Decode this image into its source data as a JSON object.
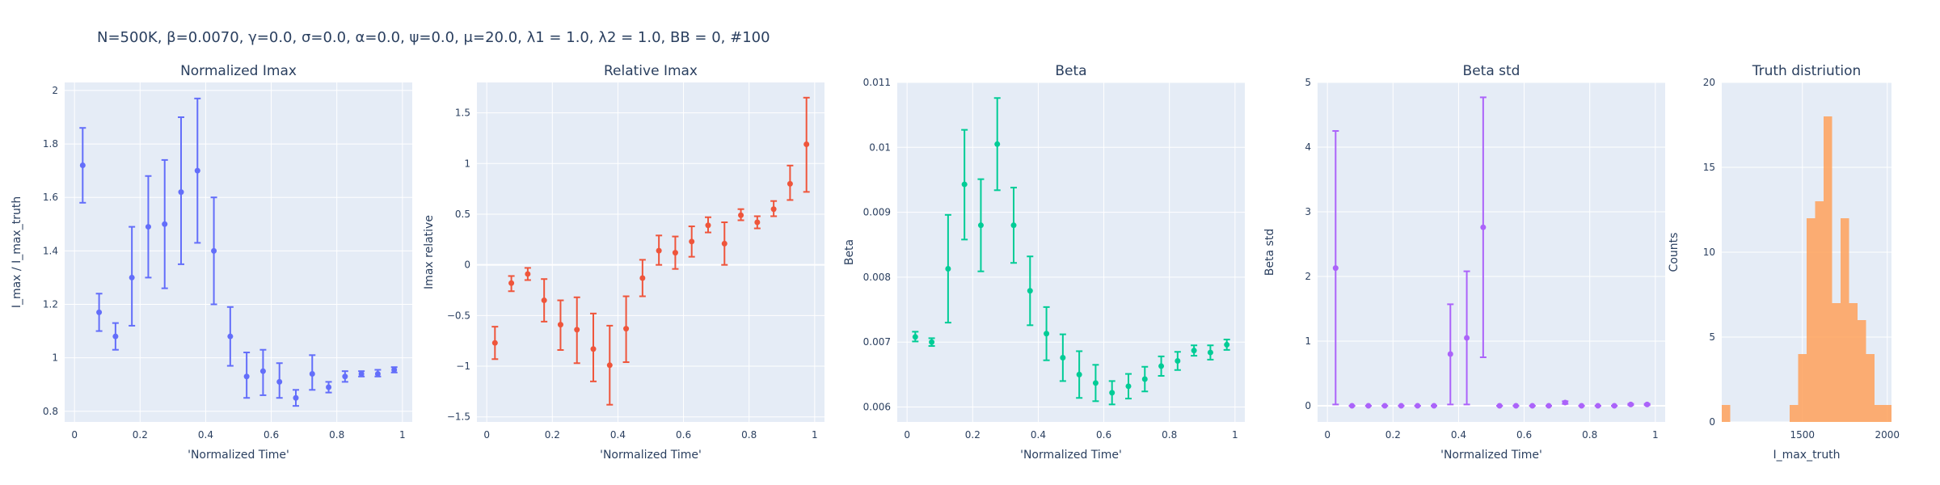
{
  "figure_title": "N=500K, β=0.0070, γ=0.0, σ=0.0,  α=0.0, ψ=0.0, μ=20.0, λ1 = 1.0, λ2 = 1.0, BB = 0, #100",
  "chart_data": [
    {
      "type": "scatter",
      "title": "Normalized Imax",
      "xlabel": "'Normalized Time'",
      "ylabel": "I_max / I_max_truth",
      "color": "#636efa",
      "xlim": [
        -0.03,
        1.03
      ],
      "ylim": [
        0.76,
        2.03
      ],
      "xticks": [
        0,
        0.2,
        0.4,
        0.6,
        0.8,
        1
      ],
      "xtick_labels": [
        "0",
        "0.2",
        "0.4",
        "0.6",
        "0.8",
        "1"
      ],
      "yticks": [
        0.8,
        1,
        1.2,
        1.4,
        1.6,
        1.8,
        2
      ],
      "ytick_labels": [
        "0.8",
        "1",
        "1.2",
        "1.4",
        "1.6",
        "1.8",
        "2"
      ],
      "grid": true,
      "x": [
        0.025,
        0.075,
        0.125,
        0.175,
        0.225,
        0.275,
        0.325,
        0.375,
        0.425,
        0.475,
        0.525,
        0.575,
        0.625,
        0.675,
        0.725,
        0.775,
        0.825,
        0.875,
        0.925,
        0.975
      ],
      "y": [
        1.72,
        1.17,
        1.08,
        1.3,
        1.49,
        1.5,
        1.62,
        1.7,
        1.4,
        1.08,
        0.93,
        0.95,
        0.91,
        0.85,
        0.94,
        0.89,
        0.93,
        0.94,
        0.94,
        0.955
      ],
      "err_low": [
        1.58,
        1.1,
        1.03,
        1.12,
        1.3,
        1.26,
        1.35,
        1.43,
        1.2,
        0.97,
        0.85,
        0.86,
        0.85,
        0.82,
        0.88,
        0.87,
        0.91,
        0.93,
        0.93,
        0.945
      ],
      "err_high": [
        1.86,
        1.24,
        1.13,
        1.49,
        1.68,
        1.74,
        1.9,
        1.97,
        1.6,
        1.19,
        1.02,
        1.03,
        0.98,
        0.88,
        1.01,
        0.91,
        0.95,
        0.95,
        0.955,
        0.965
      ]
    },
    {
      "type": "scatter",
      "title": "Relative Imax",
      "xlabel": "'Normalized Time'",
      "ylabel": "Imax relative",
      "color": "#ef553b",
      "xlim": [
        -0.03,
        1.03
      ],
      "ylim": [
        -1.55,
        1.8
      ],
      "xticks": [
        0,
        0.2,
        0.4,
        0.6,
        0.8,
        1
      ],
      "xtick_labels": [
        "0",
        "0.2",
        "0.4",
        "0.6",
        "0.8",
        "1"
      ],
      "yticks": [
        -1.5,
        -1,
        -0.5,
        0,
        0.5,
        1,
        1.5
      ],
      "ytick_labels": [
        "−1.5",
        "−1",
        "−0.5",
        "0",
        "0.5",
        "1",
        "1.5"
      ],
      "grid": true,
      "x": [
        0.025,
        0.075,
        0.125,
        0.175,
        0.225,
        0.275,
        0.325,
        0.375,
        0.425,
        0.475,
        0.525,
        0.575,
        0.625,
        0.675,
        0.725,
        0.775,
        0.825,
        0.875,
        0.925,
        0.975
      ],
      "y": [
        -0.77,
        -0.18,
        -0.09,
        -0.35,
        -0.59,
        -0.64,
        -0.83,
        -0.99,
        -0.63,
        -0.13,
        0.14,
        0.12,
        0.23,
        0.39,
        0.21,
        0.49,
        0.42,
        0.55,
        0.8,
        1.19
      ],
      "err_low": [
        -0.93,
        -0.26,
        -0.15,
        -0.56,
        -0.84,
        -0.97,
        -1.15,
        -1.38,
        -0.96,
        -0.31,
        0.0,
        -0.04,
        0.08,
        0.32,
        0.0,
        0.44,
        0.36,
        0.48,
        0.64,
        0.72
      ],
      "err_high": [
        -0.61,
        -0.11,
        -0.03,
        -0.14,
        -0.35,
        -0.32,
        -0.48,
        -0.6,
        -0.31,
        0.05,
        0.29,
        0.28,
        0.38,
        0.47,
        0.42,
        0.55,
        0.48,
        0.63,
        0.98,
        1.65
      ]
    },
    {
      "type": "scatter",
      "title": "Beta",
      "xlabel": "'Normalized Time'",
      "ylabel": "Beta",
      "color": "#00cc96",
      "xlim": [
        -0.03,
        1.03
      ],
      "ylim": [
        0.00577,
        0.011
      ],
      "xticks": [
        0,
        0.2,
        0.4,
        0.6,
        0.8,
        1
      ],
      "xtick_labels": [
        "0",
        "0.2",
        "0.4",
        "0.6",
        "0.8",
        "1"
      ],
      "yticks": [
        0.006,
        0.007,
        0.008,
        0.009,
        0.01,
        0.011
      ],
      "ytick_labels": [
        "0.006",
        "0.007",
        "0.008",
        "0.009",
        "0.01",
        "0.011"
      ],
      "grid": true,
      "x": [
        0.025,
        0.075,
        0.125,
        0.175,
        0.225,
        0.275,
        0.325,
        0.375,
        0.425,
        0.475,
        0.525,
        0.575,
        0.625,
        0.675,
        0.725,
        0.775,
        0.825,
        0.875,
        0.925,
        0.975
      ],
      "y": [
        0.00708,
        0.007,
        0.00813,
        0.00943,
        0.0088,
        0.01005,
        0.0088,
        0.00779,
        0.00713,
        0.00676,
        0.0065,
        0.00637,
        0.00622,
        0.00632,
        0.00643,
        0.00663,
        0.00671,
        0.00687,
        0.00684,
        0.00696
      ],
      "err_low": [
        0.00701,
        0.00694,
        0.0073,
        0.00858,
        0.00809,
        0.00934,
        0.00822,
        0.00726,
        0.00672,
        0.0064,
        0.00614,
        0.00609,
        0.00604,
        0.00613,
        0.00624,
        0.00648,
        0.00657,
        0.00679,
        0.00673,
        0.00688
      ],
      "err_high": [
        0.00716,
        0.00706,
        0.00896,
        0.01027,
        0.00951,
        0.01076,
        0.00938,
        0.00832,
        0.00754,
        0.00712,
        0.00686,
        0.00665,
        0.0064,
        0.00651,
        0.00662,
        0.00678,
        0.00685,
        0.00695,
        0.00695,
        0.00704
      ]
    },
    {
      "type": "scatter",
      "title": "Beta std",
      "xlabel": "'Normalized Time'",
      "ylabel": "Beta std",
      "color": "#ab63fa",
      "xlim": [
        -0.03,
        1.03
      ],
      "ylim": [
        -0.25,
        5.0
      ],
      "xticks": [
        0,
        0.2,
        0.4,
        0.6,
        0.8,
        1
      ],
      "xtick_labels": [
        "0",
        "0.2",
        "0.4",
        "0.6",
        "0.8",
        "1"
      ],
      "yticks": [
        0,
        1,
        2,
        3,
        4,
        5
      ],
      "ytick_labels": [
        "0",
        "1",
        "2",
        "3",
        "4",
        "5"
      ],
      "grid": true,
      "x": [
        0.025,
        0.075,
        0.125,
        0.175,
        0.225,
        0.275,
        0.325,
        0.375,
        0.425,
        0.475,
        0.525,
        0.575,
        0.625,
        0.675,
        0.725,
        0.775,
        0.825,
        0.875,
        0.925,
        0.975
      ],
      "y": [
        2.13,
        0.0,
        0.0,
        0.0,
        0.0,
        0.0,
        0.0,
        0.8,
        1.05,
        2.76,
        0.0,
        0.0,
        0.0,
        0.0,
        0.05,
        0.0,
        0.0,
        0.0,
        0.02,
        0.02
      ],
      "err_low": [
        0.02,
        0.0,
        0.0,
        0.0,
        0.0,
        0.0,
        0.0,
        0.02,
        0.02,
        0.75,
        0.0,
        0.0,
        0.0,
        0.0,
        0.03,
        0.0,
        0.0,
        0.0,
        0.01,
        0.01
      ],
      "err_high": [
        4.25,
        0.0,
        0.0,
        0.0,
        0.0,
        0.0,
        0.0,
        1.57,
        2.08,
        4.77,
        0.0,
        0.0,
        0.0,
        0.0,
        0.07,
        0.0,
        0.0,
        0.0,
        0.03,
        0.03
      ]
    },
    {
      "type": "bar",
      "title": "Truth distriution",
      "xlabel": "I_max_truth",
      "ylabel": "Counts",
      "color": "#ffa15a",
      "xlim": [
        1025,
        2025
      ],
      "ylim": [
        0,
        20
      ],
      "xticks": [
        1500,
        2000
      ],
      "xtick_labels": [
        "1500",
        "2000"
      ],
      "yticks": [
        0,
        5,
        10,
        15,
        20
      ],
      "ytick_labels": [
        "0",
        "5",
        "10",
        "15",
        "20"
      ],
      "grid": true,
      "bin_width": 50,
      "bins_start": [
        1025,
        1425,
        1475,
        1525,
        1575,
        1625,
        1675,
        1725,
        1775,
        1825,
        1875,
        1925,
        1975
      ],
      "values": [
        1,
        1,
        4,
        12,
        13,
        18,
        7,
        12,
        7,
        6,
        4,
        1,
        1
      ]
    }
  ]
}
